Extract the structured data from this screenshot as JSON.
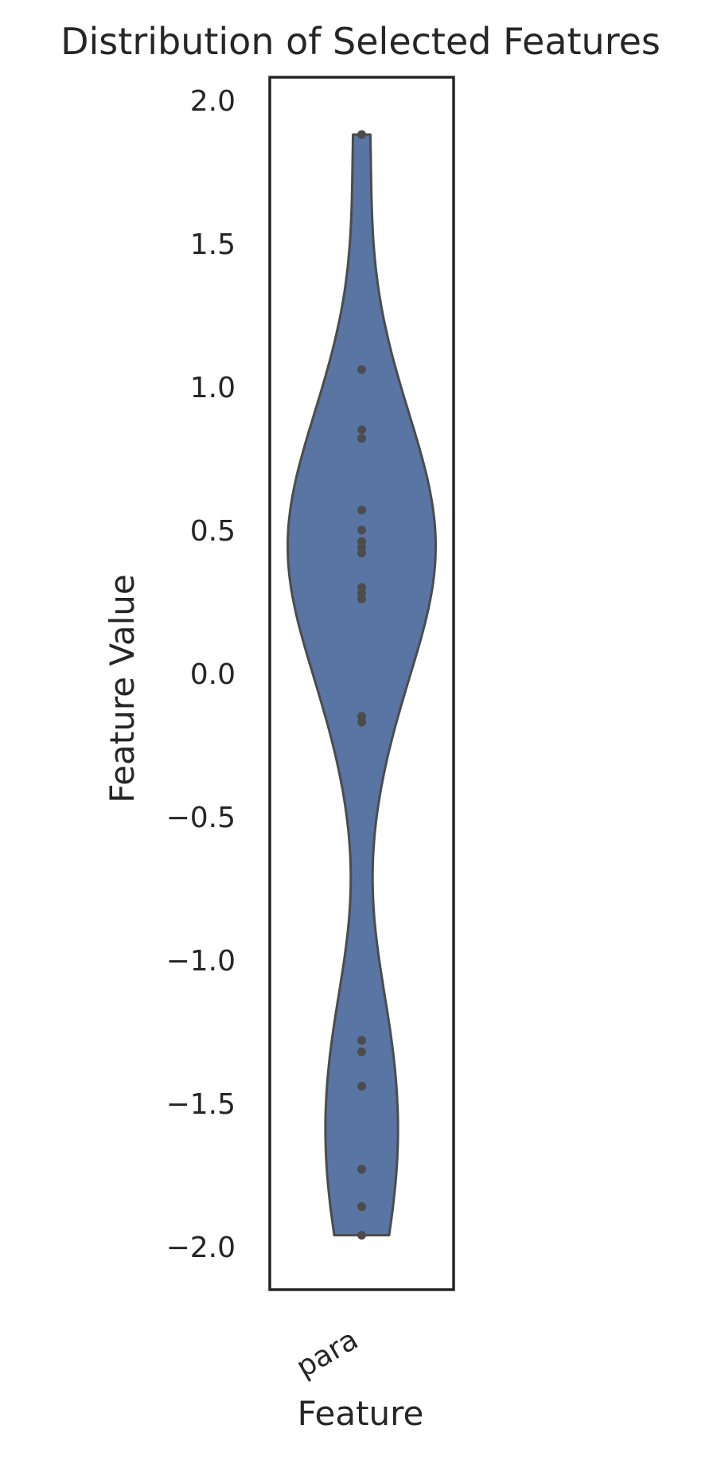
{
  "chart_data": {
    "type": "violin",
    "title": "Distribution of Selected Features",
    "xlabel": "Feature",
    "ylabel": "Feature Value",
    "categories": [
      "para"
    ],
    "ylim": [
      -2.15,
      2.08
    ],
    "yticks": [
      2.0,
      1.5,
      1.0,
      0.5,
      0.0,
      -0.5,
      -1.0,
      -1.5,
      -2.0
    ],
    "ytick_labels": [
      "2.0",
      "1.5",
      "1.0",
      "0.5",
      "0.0",
      "−0.5",
      "−1.0",
      "−1.5",
      "−2.0"
    ],
    "grid": false,
    "series": [
      {
        "category": "para",
        "points": [
          1.88,
          1.06,
          0.85,
          0.82,
          0.57,
          0.5,
          0.46,
          0.44,
          0.42,
          0.3,
          0.28,
          0.26,
          -0.15,
          -0.17,
          -1.28,
          -1.32,
          -1.44,
          -1.73,
          -1.86,
          -1.96
        ],
        "range": [
          -1.96,
          1.88
        ]
      }
    ],
    "colors": {
      "violin_fill": "#5875a4",
      "violin_edge": "#4c4c4c",
      "point": "#4c4c4c",
      "frame": "#262626",
      "text": "#262626"
    }
  }
}
